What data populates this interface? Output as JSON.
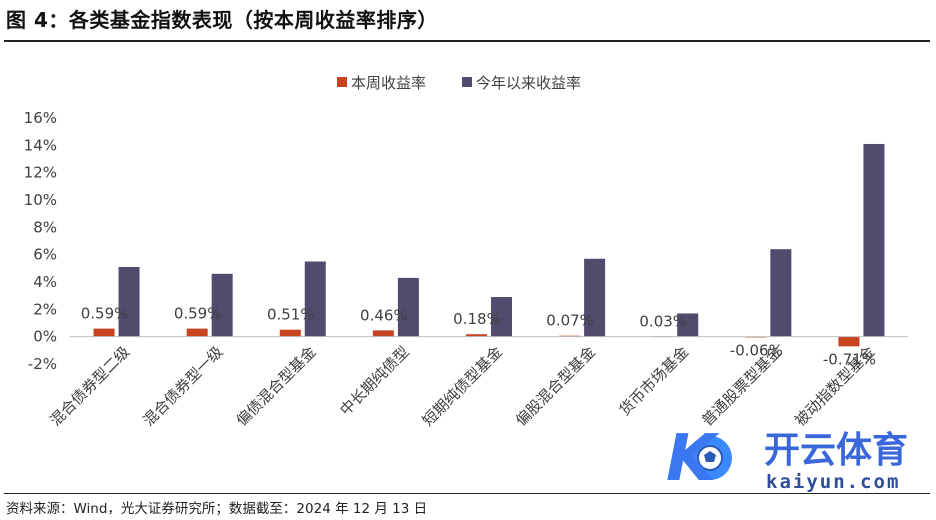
{
  "figure": {
    "title": "图 4：各类基金指数表现（按本周收益率排序）",
    "source": "资料来源：Wind，光大证券研究所；数据截至：2024 年 12 月 13 日"
  },
  "watermark": {
    "brand": "开云体育",
    "domain": "kaiyun.com",
    "logo_letter": "K"
  },
  "chart_data": {
    "type": "bar",
    "categories": [
      "混合债券型二级",
      "混合债券型一级",
      "偏债混合型基金",
      "中长期纯债型",
      "短期纯债型基金",
      "偏股混合型基金",
      "货币市场基金",
      "普通股票型基金",
      "被动指数型基金"
    ],
    "series": [
      {
        "name": "本周收益率",
        "color": "#c8431f",
        "values": [
          0.59,
          0.59,
          0.51,
          0.46,
          0.18,
          0.07,
          0.03,
          -0.06,
          -0.71
        ],
        "labels": [
          "0.59%",
          "0.59%",
          "0.51%",
          "0.46%",
          "0.18%",
          "0.07%",
          "0.03%",
          "-0.06%",
          "-0.71%"
        ]
      },
      {
        "name": "今年以来收益率",
        "color": "#524b6e",
        "values": [
          5.1,
          4.6,
          5.5,
          4.3,
          2.9,
          5.7,
          1.7,
          6.4,
          14.1
        ]
      }
    ],
    "yticks": [
      "16%",
      "14%",
      "12%",
      "10%",
      "8%",
      "6%",
      "4%",
      "2%",
      "0%",
      "-2%"
    ],
    "ylim": [
      -2,
      16
    ],
    "legend_position": "top",
    "grid": false
  }
}
